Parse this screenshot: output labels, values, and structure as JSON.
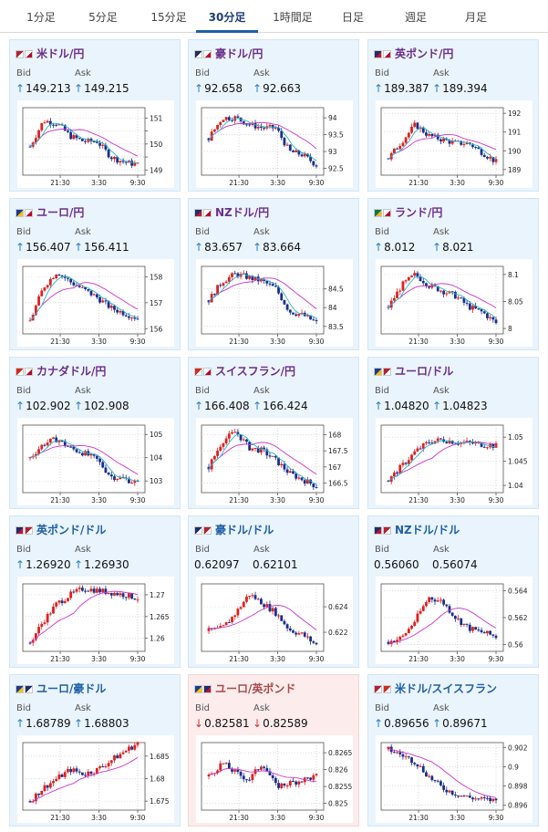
{
  "tabs": [
    {
      "label": "1分足",
      "active": false
    },
    {
      "label": "5分足",
      "active": false
    },
    {
      "label": "15分足",
      "active": false
    },
    {
      "label": "30分足",
      "active": true
    },
    {
      "label": "1時間足",
      "active": false
    },
    {
      "label": "日足",
      "active": false
    },
    {
      "label": "週足",
      "active": false
    },
    {
      "label": "月足",
      "active": false
    }
  ],
  "labels": {
    "bid": "Bid",
    "ask": "Ask"
  },
  "colors": {
    "card_bg": "#eaf4fc",
    "card_bg_down": "#fcecec",
    "pair_purple": "#6b2d8a",
    "pair_blue": "#1f5fa8",
    "arrow_up": "#2a7fc0",
    "arrow_down": "#d33a3a",
    "candle_up": "#e02020",
    "candle_down": "#1a2f8c",
    "ma_fast": "#2bb3c6",
    "ma_slow": "#cc33cc"
  },
  "cards": [
    {
      "pair": "米ドル/円",
      "flags": [
        "us-flag",
        "jp-flag"
      ],
      "direction": "up",
      "bid": "149.213",
      "ask": "149.215",
      "chart_data": {
        "type": "candlestick",
        "x_ticks": [
          "21:30",
          "3:30",
          "9:30"
        ],
        "y_ticks": [
          "151",
          "150.5",
          "150",
          "149.5",
          "149"
        ],
        "y_tick_labels": [
          "151",
          "",
          "150",
          "",
          "149"
        ],
        "ylim": [
          148.8,
          151.4
        ],
        "trend": [
          149.9,
          150.9,
          150.8,
          150.3,
          150.1,
          150.1,
          149.5,
          149.3,
          149.2
        ],
        "ma_fast": true,
        "ma_slow": true
      }
    },
    {
      "pair": "豪ドル/円",
      "flags": [
        "au-flag",
        "jp-flag"
      ],
      "direction": "up",
      "bid": "92.658",
      "ask": "92.663",
      "chart_data": {
        "type": "candlestick",
        "x_ticks": [
          "21:30",
          "3:30",
          "9:30"
        ],
        "y_ticks": [
          "94",
          "93.5",
          "93",
          "92.5"
        ],
        "y_tick_labels": [
          "94",
          "93.5",
          "93",
          "92.5"
        ],
        "ylim": [
          92.3,
          94.3
        ],
        "trend": [
          93.4,
          94.0,
          94.0,
          93.8,
          93.7,
          93.7,
          93.0,
          92.9,
          92.6
        ],
        "ma_fast": true,
        "ma_slow": true
      }
    },
    {
      "pair": "英ポンド/円",
      "flags": [
        "gb-flag",
        "jp-flag"
      ],
      "direction": "up",
      "bid": "189.387",
      "ask": "189.394",
      "chart_data": {
        "type": "candlestick",
        "x_ticks": [
          "21:30",
          "3:30",
          "9:30"
        ],
        "y_ticks": [
          "192",
          "191",
          "190",
          "189"
        ],
        "y_tick_labels": [
          "192",
          "191",
          "190",
          "189"
        ],
        "ylim": [
          188.7,
          192.3
        ],
        "trend": [
          189.6,
          190.5,
          191.4,
          190.8,
          190.6,
          190.4,
          190.4,
          189.9,
          189.4
        ],
        "ma_fast": true,
        "ma_slow": true
      }
    },
    {
      "pair": "ユーロ/円",
      "flags": [
        "eu-flag",
        "jp-flag"
      ],
      "direction": "up",
      "bid": "156.407",
      "ask": "156.411",
      "chart_data": {
        "type": "candlestick",
        "x_ticks": [
          "21:30",
          "3:30",
          "9:30"
        ],
        "y_ticks": [
          "158",
          "157",
          "156"
        ],
        "y_tick_labels": [
          "158",
          "157",
          "156"
        ],
        "ylim": [
          155.8,
          158.4
        ],
        "trend": [
          156.3,
          157.6,
          158.2,
          157.8,
          157.5,
          157.2,
          156.8,
          156.6,
          156.4
        ],
        "ma_fast": true,
        "ma_slow": true
      }
    },
    {
      "pair": "NZドル/円",
      "flags": [
        "nz-flag",
        "jp-flag"
      ],
      "direction": "up",
      "bid": "83.657",
      "ask": "83.664",
      "chart_data": {
        "type": "candlestick",
        "x_ticks": [
          "21:30",
          "3:30",
          "9:30"
        ],
        "y_ticks": [
          "84.5",
          "84",
          "83.5"
        ],
        "y_tick_labels": [
          "84.5",
          "84",
          "83.5"
        ],
        "ylim": [
          83.3,
          85.1
        ],
        "trend": [
          84.2,
          84.7,
          84.9,
          84.8,
          84.7,
          84.5,
          83.9,
          83.8,
          83.6
        ],
        "ma_fast": true,
        "ma_slow": true
      }
    },
    {
      "pair": "ランド/円",
      "flags": [
        "za-flag",
        "jp-flag"
      ],
      "direction": "up",
      "bid": "8.012",
      "ask": "8.021",
      "chart_data": {
        "type": "candlestick",
        "x_ticks": [
          "21:30",
          "3:30",
          "9:30"
        ],
        "y_ticks": [
          "8.1",
          "8.05",
          "8"
        ],
        "y_tick_labels": [
          "8.1",
          "8.05",
          "8"
        ],
        "ylim": [
          7.99,
          8.115
        ],
        "trend": [
          8.04,
          8.08,
          8.1,
          8.08,
          8.07,
          8.06,
          8.04,
          8.03,
          8.01
        ],
        "ma_fast": true,
        "ma_slow": true
      }
    },
    {
      "pair": "カナダドル/円",
      "flags": [
        "ca-flag",
        "jp-flag"
      ],
      "direction": "up",
      "bid": "102.902",
      "ask": "102.908",
      "chart_data": {
        "type": "candlestick",
        "x_ticks": [
          "21:30",
          "3:30",
          "9:30"
        ],
        "y_ticks": [
          "105",
          "104",
          "103"
        ],
        "y_tick_labels": [
          "105",
          "104",
          "103"
        ],
        "ylim": [
          102.5,
          105.4
        ],
        "trend": [
          104.0,
          104.6,
          104.8,
          104.4,
          104.2,
          103.9,
          103.2,
          103.1,
          102.9
        ],
        "ma_fast": true,
        "ma_slow": true
      }
    },
    {
      "pair": "スイスフラン/円",
      "flags": [
        "ch-flag",
        "jp-flag"
      ],
      "direction": "up",
      "bid": "166.408",
      "ask": "166.424",
      "chart_data": {
        "type": "candlestick",
        "x_ticks": [
          "21:30",
          "3:30",
          "9:30"
        ],
        "y_ticks": [
          "168",
          "167.5",
          "167",
          "166.5"
        ],
        "y_tick_labels": [
          "168",
          "167.5",
          "167",
          "166.5"
        ],
        "ylim": [
          166.2,
          168.3
        ],
        "trend": [
          167.0,
          167.8,
          168.1,
          167.6,
          167.5,
          167.2,
          166.8,
          166.6,
          166.4
        ],
        "ma_fast": true,
        "ma_slow": true
      }
    },
    {
      "pair": "ユーロ/ドル",
      "flags": [
        "eu-flag",
        "us-flag"
      ],
      "direction": "up",
      "bid": "1.04820",
      "ask": "1.04823",
      "chart_data": {
        "type": "candlestick",
        "x_ticks": [
          "21:30",
          "3:30",
          "9:30"
        ],
        "y_ticks": [
          "1.05",
          "1.045",
          "1.04"
        ],
        "y_tick_labels": [
          "1.05",
          "1.045",
          "1.04"
        ],
        "ylim": [
          1.0385,
          1.0525
        ],
        "trend": [
          1.041,
          1.044,
          1.047,
          1.049,
          1.0495,
          1.049,
          1.0488,
          1.0485,
          1.0482
        ],
        "ma_fast": true,
        "ma_slow": true
      }
    },
    {
      "pair": "英ポンド/ドル",
      "flags": [
        "gb-flag",
        "us-flag"
      ],
      "direction": "up",
      "bid": "1.26920",
      "ask": "1.26930",
      "chart_data": {
        "type": "candlestick",
        "x_ticks": [
          "21:30",
          "3:30",
          "9:30"
        ],
        "y_ticks": [
          "1.27",
          "1.265",
          "1.26"
        ],
        "y_tick_labels": [
          "1.27",
          "1.265",
          "1.26"
        ],
        "ylim": [
          1.257,
          1.2725
        ],
        "trend": [
          1.259,
          1.264,
          1.268,
          1.27,
          1.2715,
          1.271,
          1.2705,
          1.27,
          1.2692
        ],
        "ma_fast": false,
        "ma_slow": true
      }
    },
    {
      "pair": "豪ドル/ドル",
      "flags": [
        "au-flag",
        "us-flag"
      ],
      "direction": "none",
      "bid": "0.62097",
      "ask": "0.62101",
      "chart_data": {
        "type": "candlestick",
        "x_ticks": [
          "21:30",
          "3:30",
          "9:30"
        ],
        "y_ticks": [
          "0.624",
          "0.622"
        ],
        "y_tick_labels": [
          "0.624",
          "0.622"
        ],
        "ylim": [
          0.6205,
          0.6258
        ],
        "trend": [
          0.6221,
          0.6223,
          0.6235,
          0.625,
          0.6243,
          0.6235,
          0.6222,
          0.6218,
          0.621
        ],
        "ma_fast": false,
        "ma_slow": true
      }
    },
    {
      "pair": "NZドル/ドル",
      "flags": [
        "nz-flag",
        "us-flag"
      ],
      "direction": "none",
      "bid": "0.56060",
      "ask": "0.56074",
      "chart_data": {
        "type": "candlestick",
        "x_ticks": [
          "21:30",
          "3:30",
          "9:30"
        ],
        "y_ticks": [
          "0.564",
          "0.562",
          "0.56"
        ],
        "y_tick_labels": [
          "0.564",
          "0.562",
          "0.56"
        ],
        "ylim": [
          0.5595,
          0.5645
        ],
        "trend": [
          0.5602,
          0.5605,
          0.5618,
          0.5635,
          0.5632,
          0.562,
          0.5612,
          0.5609,
          0.5606
        ],
        "ma_fast": false,
        "ma_slow": true
      }
    },
    {
      "pair": "ユーロ/豪ドル",
      "flags": [
        "eu-flag",
        "au-flag"
      ],
      "direction": "up",
      "bid": "1.68789",
      "ask": "1.68803",
      "chart_data": {
        "type": "candlestick",
        "x_ticks": [
          "21:30",
          "3:30",
          "9:30"
        ],
        "y_ticks": [
          "1.685",
          "1.68",
          "1.675"
        ],
        "y_tick_labels": [
          "1.685",
          "1.68",
          "1.675"
        ],
        "ylim": [
          1.673,
          1.688
        ],
        "trend": [
          1.675,
          1.678,
          1.68,
          1.682,
          1.681,
          1.682,
          1.684,
          1.686,
          1.6879
        ],
        "ma_fast": false,
        "ma_slow": true
      }
    },
    {
      "pair": "ユーロ/英ポンド",
      "flags": [
        "eu-flag",
        "gb-flag"
      ],
      "direction": "down",
      "bid": "0.82581",
      "ask": "0.82589",
      "chart_data": {
        "type": "candlestick",
        "x_ticks": [
          "21:30",
          "3:30",
          "9:30"
        ],
        "y_ticks": [
          "0.8265",
          "0.826",
          "0.8255",
          "0.825"
        ],
        "y_tick_labels": [
          "0.8265",
          "0.826",
          "0.8255",
          "0.825"
        ],
        "ylim": [
          0.8248,
          0.8268
        ],
        "trend": [
          0.8258,
          0.8262,
          0.8259,
          0.8257,
          0.8262,
          0.8255,
          0.8256,
          0.8257,
          0.8258
        ],
        "ma_fast": false,
        "ma_slow": true
      }
    },
    {
      "pair": "米ドル/スイスフラン",
      "flags": [
        "us-flag",
        "ch-flag"
      ],
      "direction": "up",
      "bid": "0.89656",
      "ask": "0.89671",
      "chart_data": {
        "type": "candlestick",
        "x_ticks": [
          "21:30",
          "3:30",
          "9:30"
        ],
        "y_ticks": [
          "0.902",
          "0.9",
          "0.898",
          "0.896"
        ],
        "y_tick_labels": [
          "0.902",
          "0.9",
          "0.898",
          "0.896"
        ],
        "ylim": [
          0.8955,
          0.9025
        ],
        "trend": [
          0.9018,
          0.9012,
          0.9005,
          0.899,
          0.8978,
          0.8972,
          0.8968,
          0.8966,
          0.8965
        ],
        "ma_fast": false,
        "ma_slow": true
      }
    }
  ]
}
